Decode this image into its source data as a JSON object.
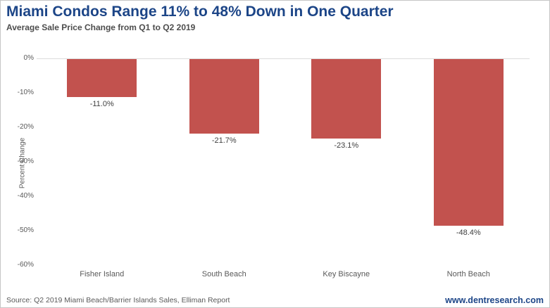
{
  "page": {
    "title": "Miami Condos Range 11% to 48% Down in One Quarter",
    "subtitle": "Average Sale Price Change from Q1 to Q2 2019",
    "source": "Source: Q2 2019 Miami Beach/Barrier Islands Sales, Elliman Report",
    "website": "www.dentresearch.com"
  },
  "colors": {
    "title_navy": "#1c4587",
    "subtitle_gray": "#4d4d4d",
    "axis_text": "#595959",
    "value_text": "#404040",
    "bar_red": "#c2524e",
    "zero_line": "#dcdcdc",
    "border": "#c6c6c6"
  },
  "chart_data": {
    "type": "bar",
    "title": "Miami Condos Range 11% to 48% Down in One Quarter",
    "subtitle": "Average Sale Price Change from Q1 to Q2 2019",
    "categories": [
      "Fisher Island",
      "South Beach",
      "Key Biscayne",
      "North Beach"
    ],
    "values": [
      -11.0,
      -21.7,
      -23.1,
      -48.4
    ],
    "value_labels": [
      "-11.0%",
      "-21.7%",
      "-23.1%",
      "-48.4%"
    ],
    "xlabel": "",
    "ylabel": "Percent Change",
    "ylim": [
      -60,
      0
    ],
    "ytick_values": [
      0,
      -10,
      -20,
      -30,
      -40,
      -50,
      -60
    ],
    "ytick_labels": [
      "0%",
      "-10%",
      "-20%",
      "-30%",
      "-40%",
      "-50%",
      "-60%"
    ],
    "grid": false,
    "legend": false,
    "bar_color": "#c2524e",
    "data_labels": "outside-end"
  }
}
